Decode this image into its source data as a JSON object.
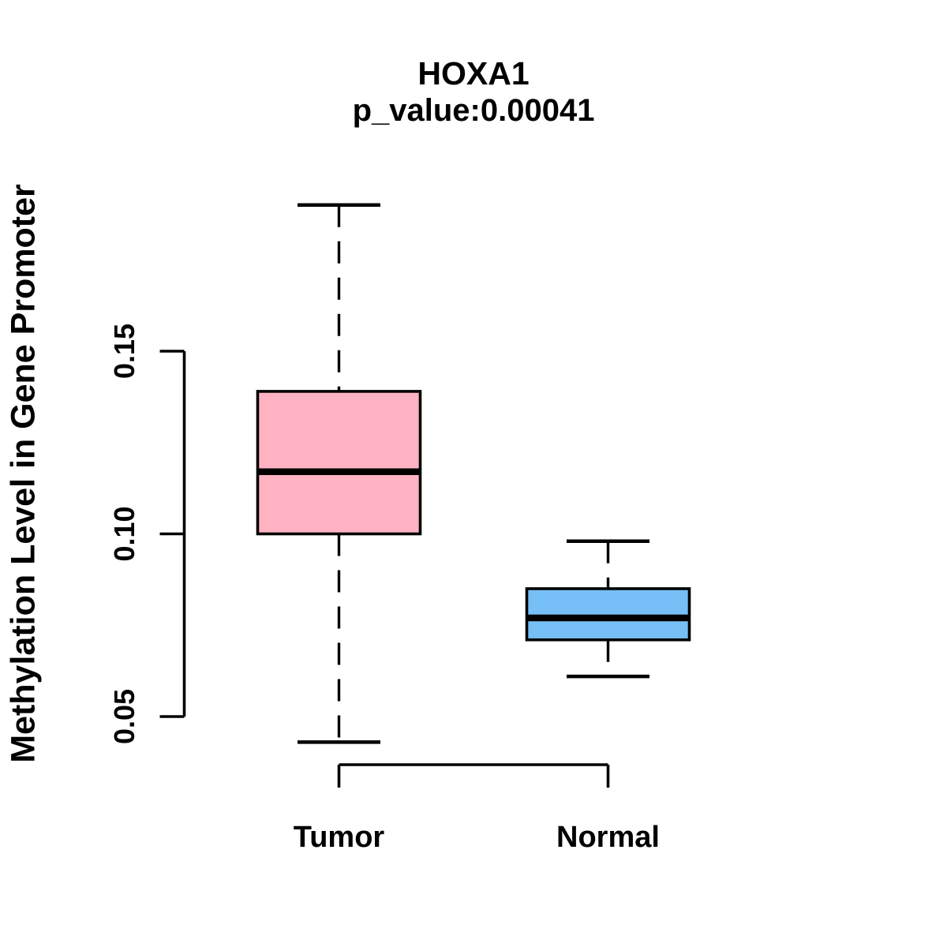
{
  "chart_data": {
    "type": "boxplot",
    "title": "HOXA1",
    "subtitle": "p_value:0.00041",
    "p_value": 0.00041,
    "ylabel": "Methylation Level in Gene Promoter",
    "xlabel": "",
    "background_color": "#FFFFFF",
    "axis_color": "#000000",
    "grid": false,
    "legend": false,
    "ylim": [
      0.035,
      0.198
    ],
    "yticks": [
      0.05,
      0.1,
      0.15
    ],
    "ytick_labels": [
      "0.05",
      "0.10",
      "0.15"
    ],
    "whisker_style": "dashed",
    "groups": [
      {
        "label": "Tumor",
        "fill_color": "#FFB3C2",
        "border_color": "#000000",
        "whisker_low": 0.043,
        "q1": 0.1,
        "median": 0.117,
        "q3": 0.139,
        "whisker_high": 0.19
      },
      {
        "label": "Normal",
        "fill_color": "#77BFF7",
        "border_color": "#000000",
        "whisker_low": 0.061,
        "q1": 0.071,
        "median": 0.077,
        "q3": 0.085,
        "whisker_high": 0.098
      }
    ]
  }
}
